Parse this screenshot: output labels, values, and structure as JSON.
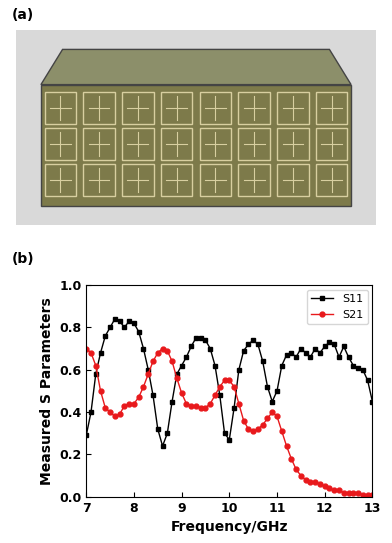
{
  "panel_labels": [
    "(a)",
    "(b)"
  ],
  "chart_data": {
    "type": "line",
    "x_label": "Frequency/GHz",
    "y_label": "Measured S Parameters",
    "x": [
      7.0,
      7.1,
      7.2,
      7.3,
      7.4,
      7.5,
      7.6,
      7.7,
      7.8,
      7.9,
      8.0,
      8.1,
      8.2,
      8.3,
      8.4,
      8.5,
      8.6,
      8.7,
      8.8,
      8.9,
      9.0,
      9.1,
      9.2,
      9.3,
      9.4,
      9.5,
      9.6,
      9.7,
      9.8,
      9.9,
      10.0,
      10.1,
      10.2,
      10.3,
      10.4,
      10.5,
      10.6,
      10.7,
      10.8,
      10.9,
      11.0,
      11.1,
      11.2,
      11.3,
      11.4,
      11.5,
      11.6,
      11.7,
      11.8,
      11.9,
      12.0,
      12.1,
      12.2,
      12.3,
      12.4,
      12.5,
      12.6,
      12.7,
      12.8,
      12.9,
      13.0
    ],
    "series": [
      {
        "name": "S11",
        "color": "#000000",
        "marker": "square",
        "line_style": "solid",
        "values": [
          0.29,
          0.4,
          0.58,
          0.68,
          0.76,
          0.8,
          0.84,
          0.83,
          0.8,
          0.83,
          0.82,
          0.78,
          0.7,
          0.6,
          0.48,
          0.32,
          0.24,
          0.3,
          0.45,
          0.58,
          0.62,
          0.66,
          0.71,
          0.75,
          0.75,
          0.74,
          0.7,
          0.62,
          0.48,
          0.3,
          0.27,
          0.42,
          0.6,
          0.69,
          0.72,
          0.74,
          0.72,
          0.64,
          0.52,
          0.45,
          0.5,
          0.62,
          0.67,
          0.68,
          0.66,
          0.7,
          0.68,
          0.66,
          0.7,
          0.68,
          0.71,
          0.73,
          0.72,
          0.66,
          0.71,
          0.66,
          0.62,
          0.61,
          0.6,
          0.55,
          0.45
        ]
      },
      {
        "name": "S21",
        "color": "#e8191c",
        "marker": "circle",
        "line_style": "solid",
        "values": [
          0.7,
          0.68,
          0.62,
          0.5,
          0.42,
          0.4,
          0.38,
          0.39,
          0.43,
          0.44,
          0.44,
          0.47,
          0.52,
          0.58,
          0.64,
          0.68,
          0.7,
          0.69,
          0.64,
          0.56,
          0.49,
          0.44,
          0.43,
          0.43,
          0.42,
          0.42,
          0.44,
          0.48,
          0.52,
          0.55,
          0.55,
          0.52,
          0.44,
          0.36,
          0.32,
          0.31,
          0.32,
          0.34,
          0.37,
          0.4,
          0.38,
          0.31,
          0.24,
          0.18,
          0.13,
          0.1,
          0.08,
          0.07,
          0.07,
          0.06,
          0.05,
          0.04,
          0.03,
          0.03,
          0.02,
          0.02,
          0.02,
          0.02,
          0.01,
          0.01,
          0.01
        ]
      }
    ],
    "xlim": [
      7,
      13
    ],
    "xticks": [
      7,
      8,
      9,
      10,
      11,
      12,
      13
    ],
    "ylim": [
      0.0,
      1.0
    ],
    "yticks": [
      {
        "value": 0.0,
        "label": "0.0"
      },
      {
        "value": 0.2,
        "label": "0.2"
      },
      {
        "value": 0.4,
        "label": "0.4"
      },
      {
        "value": 0.6,
        "label": "0.6"
      },
      {
        "value": 0.8,
        "label": "0.8"
      },
      {
        "value": 1.0,
        "label": "1.0"
      }
    ],
    "legend": "upper right",
    "grid": false
  }
}
